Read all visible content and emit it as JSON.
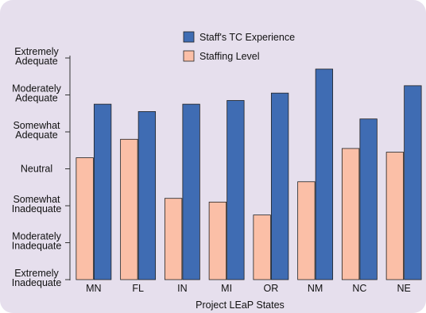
{
  "chart_data": {
    "type": "bar",
    "categories": [
      "MN",
      "FL",
      "IN",
      "MI",
      "OR",
      "NM",
      "NC",
      "NE"
    ],
    "highlight_category": "MN",
    "series": [
      {
        "name": "Staffing Level",
        "values": [
          3.3,
          3.8,
          2.2,
          2.1,
          1.75,
          2.65,
          3.55,
          3.45
        ],
        "color": "#fbbfa7"
      },
      {
        "name": "Staff's TC Experience",
        "values": [
          4.75,
          4.55,
          4.75,
          4.85,
          5.05,
          5.7,
          4.35,
          5.25
        ],
        "color": "#3f6cb3"
      }
    ],
    "y_tick_labels": [
      [
        "Extremely",
        "Inadequate"
      ],
      [
        "Moderately",
        "Inadequate"
      ],
      [
        "Somewhat",
        "Inadequate"
      ],
      [
        "Neutral"
      ],
      [
        "Somewhat",
        "Adequate"
      ],
      [
        "Moderately",
        "Adequate"
      ],
      [
        "Extremely",
        "Adequate"
      ]
    ],
    "ylim": [
      0,
      6
    ],
    "xlabel": "Project LEaP States",
    "ylabel": "",
    "title": "",
    "legend_order": [
      "Staff's TC Experience",
      "Staffing Level"
    ],
    "legend_position": "top-center",
    "grid": false,
    "highlight_color": "#f29b6e"
  }
}
